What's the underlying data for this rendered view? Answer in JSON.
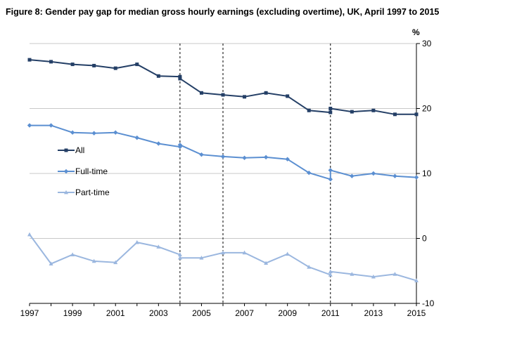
{
  "chart_data": {
    "type": "line",
    "title": "Figure 8: Gender pay gap for median gross hourly earnings (excluding overtime), UK, April 1997 to 2015",
    "ylabel": "%",
    "xlabel": "",
    "ylim": [
      -10,
      30
    ],
    "yticks": [
      "30",
      "20",
      "10",
      "0",
      "-10"
    ],
    "ytick_values": [
      30,
      20,
      10,
      0,
      -10
    ],
    "xticks": [
      "1997",
      "1999",
      "2001",
      "2003",
      "2005",
      "2007",
      "2009",
      "2011",
      "2013",
      "2015"
    ],
    "xtick_values": [
      1997,
      1999,
      2001,
      2003,
      2005,
      2007,
      2009,
      2011,
      2013,
      2015
    ],
    "xlim": [
      1997,
      2015
    ],
    "y_axis_side": "right",
    "grid": "horizontal",
    "legend_position": "left",
    "break_years": [
      2004,
      2006,
      2011
    ],
    "series": [
      {
        "name": "All",
        "color": "#243f66",
        "marker": "square",
        "points": [
          [
            1997,
            27.5
          ],
          [
            1998,
            27.2
          ],
          [
            1999,
            26.8
          ],
          [
            2000,
            26.6
          ],
          [
            2001,
            26.2
          ],
          [
            2002,
            26.8
          ],
          [
            2003,
            25.0
          ],
          [
            2004,
            24.9
          ],
          [
            2004,
            24.6
          ],
          [
            2005,
            22.4
          ],
          [
            2006,
            22.1
          ],
          [
            2007,
            21.8
          ],
          [
            2008,
            22.4
          ],
          [
            2009,
            21.9
          ],
          [
            2010,
            19.7
          ],
          [
            2011,
            19.4
          ],
          [
            2011,
            20.0
          ],
          [
            2012,
            19.5
          ],
          [
            2013,
            19.7
          ],
          [
            2014,
            19.1
          ],
          [
            2015,
            19.1
          ]
        ]
      },
      {
        "name": "Full-time",
        "color": "#5b8fd1",
        "marker": "diamond",
        "points": [
          [
            1997,
            17.4
          ],
          [
            1998,
            17.4
          ],
          [
            1999,
            16.3
          ],
          [
            2000,
            16.2
          ],
          [
            2001,
            16.3
          ],
          [
            2002,
            15.5
          ],
          [
            2003,
            14.6
          ],
          [
            2004,
            14.1
          ],
          [
            2004,
            14.4
          ],
          [
            2005,
            12.9
          ],
          [
            2006,
            12.6
          ],
          [
            2007,
            12.4
          ],
          [
            2008,
            12.5
          ],
          [
            2009,
            12.2
          ],
          [
            2010,
            10.1
          ],
          [
            2011,
            9.1
          ],
          [
            2011,
            10.5
          ],
          [
            2012,
            9.6
          ],
          [
            2013,
            10.0
          ],
          [
            2014,
            9.6
          ],
          [
            2015,
            9.4
          ]
        ]
      },
      {
        "name": "Part-time",
        "color": "#9bb7df",
        "marker": "triangle",
        "points": [
          [
            1997,
            0.6
          ],
          [
            1998,
            -3.9
          ],
          [
            1999,
            -2.5
          ],
          [
            2000,
            -3.5
          ],
          [
            2001,
            -3.7
          ],
          [
            2002,
            -0.6
          ],
          [
            2003,
            -1.3
          ],
          [
            2004,
            -2.5
          ],
          [
            2004,
            -3.0
          ],
          [
            2005,
            -3.0
          ],
          [
            2006,
            -2.2
          ],
          [
            2007,
            -2.2
          ],
          [
            2008,
            -3.8
          ],
          [
            2009,
            -2.4
          ],
          [
            2010,
            -4.4
          ],
          [
            2011,
            -5.6
          ],
          [
            2011,
            -5.1
          ],
          [
            2012,
            -5.5
          ],
          [
            2013,
            -5.9
          ],
          [
            2014,
            -5.5
          ],
          [
            2015,
            -6.5
          ]
        ]
      }
    ]
  }
}
